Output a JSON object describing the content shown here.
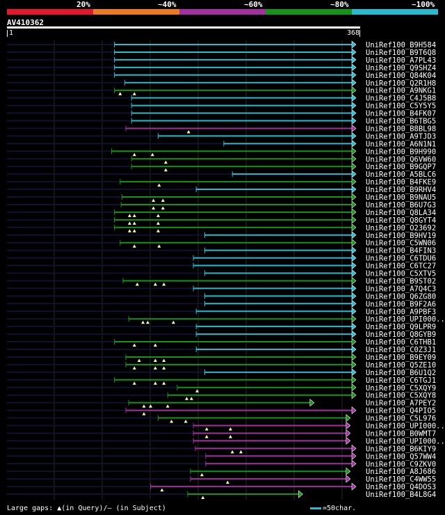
{
  "header": {
    "legend": [
      {
        "label": "20%",
        "color": "#e8162c"
      },
      {
        "label": "~40%",
        "color": "#ec7a1e"
      },
      {
        "label": "~60%",
        "color": "#a330a0"
      },
      {
        "label": "~80%",
        "color": "#169416"
      },
      {
        "label": "~100%",
        "color": "#25bbd0"
      }
    ],
    "query_name": "AV410362",
    "ruler_start": "1",
    "ruler_end": "368"
  },
  "chart_data": {
    "type": "alignment",
    "query_length": 368,
    "line_color": "#111133",
    "hits": [
      {
        "name": "UniRef100_B9H584",
        "color": "cyan",
        "start": 114,
        "end": 368,
        "arrow": "right",
        "marks": []
      },
      {
        "name": "UniRef100_B9T6Q8",
        "color": "cyan",
        "start": 114,
        "end": 368,
        "arrow": "right",
        "marks": []
      },
      {
        "name": "UniRef100_A7PL43",
        "color": "cyan",
        "start": 114,
        "end": 368,
        "arrow": "right",
        "marks": []
      },
      {
        "name": "UniRef100_Q9SHZ4",
        "color": "cyan",
        "start": 114,
        "end": 368,
        "arrow": "right",
        "marks": []
      },
      {
        "name": "UniRef100_Q84K04",
        "color": "cyan",
        "start": 114,
        "end": 368,
        "arrow": "right",
        "marks": []
      },
      {
        "name": "UniRef100_Q2R1H8",
        "color": "cyan",
        "start": 125,
        "end": 368,
        "arrow": "right",
        "marks": []
      },
      {
        "name": "UniRef100_A9NKG1",
        "color": "green",
        "start": 114,
        "end": 368,
        "arrow": "right",
        "marks": [
          120,
          135
        ]
      },
      {
        "name": "UniRef100_C4J5B8",
        "color": "cyan",
        "start": 132,
        "end": 368,
        "arrow": "right",
        "marks": []
      },
      {
        "name": "UniRef100_C5Y5Y5",
        "color": "cyan",
        "start": 132,
        "end": 368,
        "arrow": "right",
        "marks": []
      },
      {
        "name": "UniRef100_B4FK07",
        "color": "cyan",
        "start": 132,
        "end": 368,
        "arrow": "right",
        "marks": []
      },
      {
        "name": "UniRef100_B6TBG5",
        "color": "cyan",
        "start": 132,
        "end": 368,
        "arrow": "right",
        "marks": []
      },
      {
        "name": "UniRef100_B8BL98",
        "color": "purple",
        "start": 126,
        "end": 368,
        "arrow": "right",
        "marks": [
          192
        ]
      },
      {
        "name": "UniRef100_A9TJD3",
        "color": "cyan",
        "start": 160,
        "end": 368,
        "arrow": "right",
        "marks": []
      },
      {
        "name": "UniRef100_A6N1N1",
        "color": "cyan",
        "start": 229,
        "end": 368,
        "arrow": "right",
        "marks": []
      },
      {
        "name": "UniRef100_B9H990",
        "color": "green",
        "start": 111,
        "end": 368,
        "arrow": "right",
        "marks": [
          135,
          154
        ]
      },
      {
        "name": "UniRef100_Q6VW60",
        "color": "green",
        "start": 132,
        "end": 368,
        "arrow": "right",
        "marks": [
          168
        ]
      },
      {
        "name": "UniRef100_B9GQP7",
        "color": "green",
        "start": 132,
        "end": 368,
        "arrow": "right",
        "marks": [
          168
        ]
      },
      {
        "name": "UniRef100_A5BLC6",
        "color": "cyan",
        "start": 238,
        "end": 368,
        "arrow": "right",
        "marks": []
      },
      {
        "name": "UniRef100_B4FKE9",
        "color": "green",
        "start": 120,
        "end": 368,
        "arrow": "right",
        "marks": [
          161
        ]
      },
      {
        "name": "UniRef100_B9RHV4",
        "color": "cyan",
        "start": 200,
        "end": 368,
        "arrow": "right",
        "marks": []
      },
      {
        "name": "UniRef100_B9NAU5",
        "color": "green",
        "start": 122,
        "end": 368,
        "arrow": "right",
        "marks": [
          155,
          165
        ]
      },
      {
        "name": "UniRef100_B6U7G3",
        "color": "green",
        "start": 121,
        "end": 368,
        "arrow": "right",
        "marks": [
          155,
          165
        ]
      },
      {
        "name": "UniRef100_Q8LA34",
        "color": "green",
        "start": 114,
        "end": 368,
        "arrow": "right",
        "marks": [
          130,
          135,
          160
        ]
      },
      {
        "name": "UniRef100_Q8GYT4",
        "color": "green",
        "start": 114,
        "end": 368,
        "arrow": "right",
        "marks": [
          130,
          135,
          160
        ]
      },
      {
        "name": "UniRef100_O23692",
        "color": "green",
        "start": 114,
        "end": 368,
        "arrow": "right",
        "marks": [
          130,
          135,
          160
        ]
      },
      {
        "name": "UniRef100_B9HV19",
        "color": "cyan",
        "start": 209,
        "end": 368,
        "arrow": "right",
        "marks": []
      },
      {
        "name": "UniRef100_C5WN06",
        "color": "green",
        "start": 120,
        "end": 368,
        "arrow": "right",
        "marks": [
          135,
          161
        ]
      },
      {
        "name": "UniRef100_B4FIN3",
        "color": "cyan",
        "start": 209,
        "end": 368,
        "arrow": "right",
        "marks": []
      },
      {
        "name": "UniRef100_C6TDU6",
        "color": "cyan",
        "start": 197,
        "end": 368,
        "arrow": "right",
        "marks": []
      },
      {
        "name": "UniRef100_C6TC27",
        "color": "cyan",
        "start": 197,
        "end": 368,
        "arrow": "right",
        "marks": []
      },
      {
        "name": "UniRef100_C5XTV5",
        "color": "cyan",
        "start": 209,
        "end": 368,
        "arrow": "right",
        "marks": []
      },
      {
        "name": "UniRef100_B9ST02",
        "color": "green",
        "start": 123,
        "end": 368,
        "arrow": "right",
        "marks": [
          138,
          157,
          166
        ]
      },
      {
        "name": "UniRef100_A7Q4C3",
        "color": "cyan",
        "start": 197,
        "end": 368,
        "arrow": "right",
        "marks": []
      },
      {
        "name": "UniRef100_Q6ZG80",
        "color": "cyan",
        "start": 209,
        "end": 368,
        "arrow": "right",
        "marks": []
      },
      {
        "name": "UniRef100_B9F2A6",
        "color": "cyan",
        "start": 209,
        "end": 368,
        "arrow": "right",
        "marks": []
      },
      {
        "name": "UniRef100_A9PBF3",
        "color": "cyan",
        "start": 200,
        "end": 368,
        "arrow": "right",
        "marks": []
      },
      {
        "name": "UniRef100_UPI000..",
        "color": "green",
        "start": 129,
        "end": 368,
        "arrow": "right",
        "marks": [
          144,
          149,
          176
        ]
      },
      {
        "name": "UniRef100_Q9LPR9",
        "color": "cyan",
        "start": 200,
        "end": 368,
        "arrow": "right",
        "marks": []
      },
      {
        "name": "UniRef100_Q8GYB9",
        "color": "cyan",
        "start": 200,
        "end": 368,
        "arrow": "right",
        "marks": []
      },
      {
        "name": "UniRef100_C6THB1",
        "color": "green",
        "start": 114,
        "end": 368,
        "arrow": "right",
        "marks": [
          135,
          157
        ]
      },
      {
        "name": "UniRef100_C0Z3J1",
        "color": "cyan",
        "start": 200,
        "end": 368,
        "arrow": "right",
        "marks": []
      },
      {
        "name": "UniRef100_B9EY09",
        "color": "green",
        "start": 126,
        "end": 368,
        "arrow": "right",
        "marks": [
          140,
          157,
          166
        ]
      },
      {
        "name": "UniRef100_Q5ZE10",
        "color": "green",
        "start": 126,
        "end": 368,
        "arrow": "right",
        "marks": [
          135,
          157,
          166
        ]
      },
      {
        "name": "UniRef100_B6U1Q2",
        "color": "cyan",
        "start": 209,
        "end": 368,
        "arrow": "right",
        "marks": []
      },
      {
        "name": "UniRef100_C6TGJ1",
        "color": "green",
        "start": 114,
        "end": 368,
        "arrow": "right",
        "marks": [
          135,
          157,
          166
        ]
      },
      {
        "name": "UniRef100_C5XQY9",
        "color": "green",
        "start": 180,
        "end": 368,
        "arrow": "right",
        "marks": [
          201
        ]
      },
      {
        "name": "UniRef100_C5XQY8",
        "color": "green",
        "start": 170,
        "end": 368,
        "arrow": "right",
        "marks": [
          190,
          195
        ]
      },
      {
        "name": "UniRef100_A7PEY2",
        "color": "green",
        "start": 129,
        "end": 324,
        "arrow": "right",
        "marks": [
          145,
          152,
          170
        ]
      },
      {
        "name": "UniRef100_Q4PIO5",
        "color": "purple",
        "start": 126,
        "end": 368,
        "arrow": "right",
        "marks": [
          145
        ]
      },
      {
        "name": "UniRef100_C5L976",
        "color": "green",
        "start": 160,
        "end": 362,
        "arrow": "right",
        "marks": [
          174,
          189
        ]
      },
      {
        "name": "UniRef100_UPI000..",
        "color": "purple",
        "start": 197,
        "end": 362,
        "arrow": "right",
        "marks": [
          211,
          236
        ]
      },
      {
        "name": "UniRef100_B0WMT7",
        "color": "purple",
        "start": 197,
        "end": 362,
        "arrow": "right",
        "marks": [
          211,
          236
        ]
      },
      {
        "name": "UniRef100_UPI000..",
        "color": "purple",
        "start": 197,
        "end": 362,
        "arrow": "right",
        "marks": []
      },
      {
        "name": "UniRef100_B6KIY9",
        "color": "purple",
        "start": 199,
        "end": 368,
        "arrow": "right",
        "marks": [
          238,
          247
        ]
      },
      {
        "name": "UniRef100_Q57WW4",
        "color": "purple",
        "start": 210,
        "end": 368,
        "arrow": "right",
        "marks": []
      },
      {
        "name": "UniRef100_C9ZKV0",
        "color": "purple",
        "start": 210,
        "end": 368,
        "arrow": "right",
        "marks": []
      },
      {
        "name": "UniRef100_A8J686",
        "color": "green",
        "start": 194,
        "end": 362,
        "arrow": "right",
        "marks": [
          206
        ]
      },
      {
        "name": "UniRef100_C4WW55",
        "color": "purple",
        "start": 194,
        "end": 362,
        "arrow": "right",
        "marks": [
          233
        ]
      },
      {
        "name": "UniRef100_Q4DOS3",
        "color": "purple",
        "start": 152,
        "end": 368,
        "arrow": "right",
        "marks": [
          164
        ]
      },
      {
        "name": "UniRef100_B4L8G4",
        "color": "green",
        "start": 191,
        "end": 312,
        "arrow": "right",
        "marks": [
          207
        ]
      }
    ]
  },
  "footer": {
    "gaps_label": "Large gaps: ▲(in Query)/— (in Subject)",
    "scale_label": "=50char."
  }
}
